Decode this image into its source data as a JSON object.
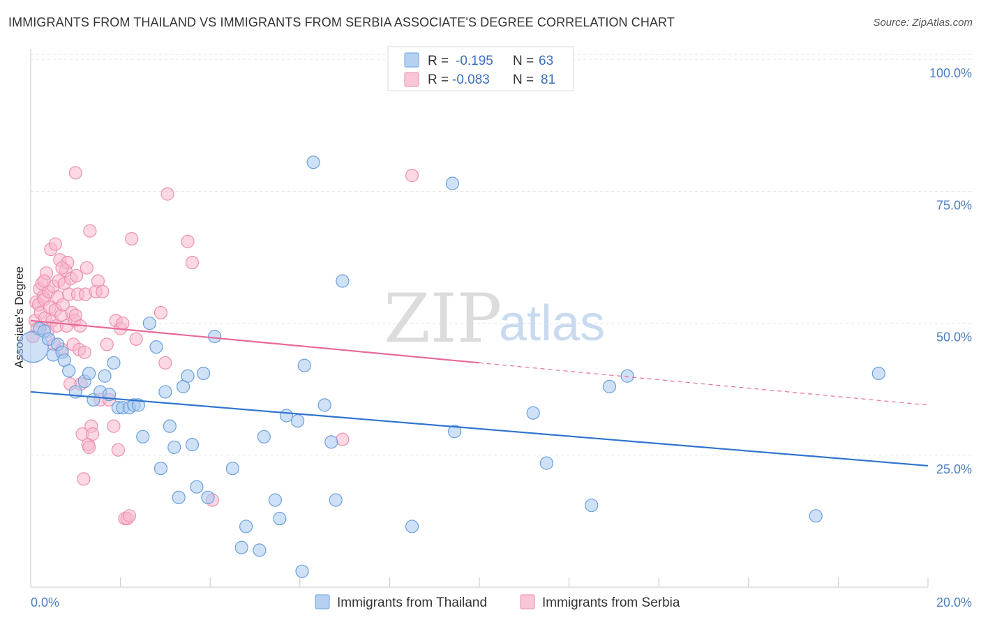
{
  "title": "IMMIGRANTS FROM THAILAND VS IMMIGRANTS FROM SERBIA ASSOCIATE'S DEGREE CORRELATION CHART",
  "source": "Source: ZipAtlas.com",
  "watermark": {
    "zip": "ZIP",
    "atlas": "atlas"
  },
  "legend": {
    "rows": [
      {
        "r_label": "R =",
        "r_value": "-0.195",
        "n_label": "N =",
        "n_value": "63",
        "color": "#7eaee8"
      },
      {
        "r_label": "R =",
        "r_value": "-0.083",
        "n_label": "N =",
        "n_value": "81",
        "color": "#f29bb8"
      }
    ]
  },
  "colors": {
    "thailand_fill": "#a8c8f0",
    "thailand_stroke": "#6a9fdc",
    "thailand_line": "#2f74cf",
    "serbia_fill": "#f7b8cc",
    "serbia_stroke": "#ee8fb0",
    "serbia_line": "#e8699a",
    "grid": "#e3e3e3",
    "tick_label": "#4a7fc1"
  },
  "chart_data": {
    "type": "scatter",
    "title": "IMMIGRANTS FROM THAILAND VS IMMIGRANTS FROM SERBIA ASSOCIATE'S DEGREE CORRELATION CHART",
    "xlabel": "",
    "ylabel": "Associate's Degree",
    "xlim": [
      0,
      20
    ],
    "ylim": [
      0,
      102
    ],
    "x_tick_labels": [
      "0.0%",
      "20.0%"
    ],
    "y_ticks": [
      25,
      50,
      75,
      100
    ],
    "y_tick_labels": [
      "25.0%",
      "50.0%",
      "75.0%",
      "100.0%"
    ],
    "grid": true,
    "legend_placement": "top-center and bottom",
    "series": [
      {
        "name": "Immigrants from Thailand",
        "color": "#7eaee8",
        "trend": {
          "x": [
            0,
            20
          ],
          "y": [
            37.0,
            23.0
          ],
          "solid_until": 20
        },
        "points": [
          [
            0.05,
            45.5
          ],
          [
            0.2,
            49.0
          ],
          [
            0.3,
            48.5
          ],
          [
            0.4,
            47.0
          ],
          [
            0.5,
            44.0
          ],
          [
            0.6,
            46.0
          ],
          [
            0.7,
            44.5
          ],
          [
            0.75,
            43.0
          ],
          [
            0.85,
            41.0
          ],
          [
            1.0,
            37.0
          ],
          [
            1.2,
            39.0
          ],
          [
            1.3,
            40.5
          ],
          [
            1.4,
            35.5
          ],
          [
            1.55,
            37.0
          ],
          [
            1.65,
            40.0
          ],
          [
            1.75,
            36.5
          ],
          [
            1.85,
            42.5
          ],
          [
            1.95,
            34.0
          ],
          [
            2.05,
            34.0
          ],
          [
            2.2,
            34.0
          ],
          [
            2.3,
            34.5
          ],
          [
            2.4,
            34.5
          ],
          [
            2.5,
            28.5
          ],
          [
            2.65,
            50.0
          ],
          [
            2.8,
            45.5
          ],
          [
            2.9,
            22.5
          ],
          [
            3.0,
            37.0
          ],
          [
            3.1,
            30.5
          ],
          [
            3.2,
            26.5
          ],
          [
            3.3,
            17.0
          ],
          [
            3.4,
            38.0
          ],
          [
            3.5,
            40.0
          ],
          [
            3.6,
            27.0
          ],
          [
            3.7,
            19.0
          ],
          [
            3.85,
            40.5
          ],
          [
            3.95,
            17.0
          ],
          [
            4.1,
            47.5
          ],
          [
            4.5,
            22.5
          ],
          [
            4.7,
            7.5
          ],
          [
            4.8,
            11.5
          ],
          [
            5.1,
            7.0
          ],
          [
            5.2,
            28.5
          ],
          [
            5.45,
            16.5
          ],
          [
            5.55,
            13.0
          ],
          [
            5.7,
            32.5
          ],
          [
            5.95,
            31.5
          ],
          [
            6.05,
            3.0
          ],
          [
            6.1,
            42.0
          ],
          [
            6.3,
            80.5
          ],
          [
            6.55,
            34.5
          ],
          [
            6.7,
            27.5
          ],
          [
            6.8,
            16.5
          ],
          [
            6.95,
            58.0
          ],
          [
            8.5,
            11.5
          ],
          [
            9.4,
            76.5
          ],
          [
            9.45,
            29.5
          ],
          [
            11.2,
            33.0
          ],
          [
            11.5,
            23.5
          ],
          [
            12.5,
            15.5
          ],
          [
            12.9,
            38.0
          ],
          [
            13.3,
            40.0
          ],
          [
            17.5,
            13.5
          ],
          [
            18.9,
            40.5
          ]
        ]
      },
      {
        "name": "Immigrants from Serbia",
        "color": "#f29bb8",
        "trend": {
          "x": [
            0,
            20
          ],
          "y": [
            50.5,
            34.5
          ],
          "solid_until": 10
        },
        "points": [
          [
            0.05,
            47.5
          ],
          [
            0.1,
            50.5
          ],
          [
            0.12,
            54.0
          ],
          [
            0.15,
            49.0
          ],
          [
            0.18,
            53.5
          ],
          [
            0.2,
            56.5
          ],
          [
            0.22,
            52.0
          ],
          [
            0.25,
            57.5
          ],
          [
            0.28,
            55.0
          ],
          [
            0.3,
            54.5
          ],
          [
            0.32,
            51.0
          ],
          [
            0.35,
            59.5
          ],
          [
            0.38,
            48.5
          ],
          [
            0.4,
            56.0
          ],
          [
            0.42,
            53.0
          ],
          [
            0.45,
            64.0
          ],
          [
            0.48,
            50.5
          ],
          [
            0.5,
            57.0
          ],
          [
            0.52,
            46.0
          ],
          [
            0.55,
            52.5
          ],
          [
            0.58,
            49.5
          ],
          [
            0.6,
            55.0
          ],
          [
            0.62,
            58.0
          ],
          [
            0.65,
            62.0
          ],
          [
            0.68,
            51.5
          ],
          [
            0.7,
            45.0
          ],
          [
            0.72,
            53.5
          ],
          [
            0.75,
            57.5
          ],
          [
            0.78,
            60.0
          ],
          [
            0.8,
            49.5
          ],
          [
            0.82,
            61.5
          ],
          [
            0.85,
            55.5
          ],
          [
            0.88,
            38.5
          ],
          [
            0.9,
            58.5
          ],
          [
            0.92,
            52.0
          ],
          [
            0.95,
            46.0
          ],
          [
            0.98,
            50.5
          ],
          [
            1.0,
            78.5
          ],
          [
            1.02,
            59.0
          ],
          [
            1.05,
            55.5
          ],
          [
            1.08,
            45.0
          ],
          [
            1.1,
            49.5
          ],
          [
            1.12,
            38.5
          ],
          [
            1.15,
            29.0
          ],
          [
            1.18,
            20.5
          ],
          [
            1.2,
            44.5
          ],
          [
            1.22,
            55.5
          ],
          [
            1.25,
            60.5
          ],
          [
            1.28,
            27.0
          ],
          [
            1.3,
            26.5
          ],
          [
            1.32,
            67.5
          ],
          [
            1.35,
            30.5
          ],
          [
            1.38,
            29.0
          ],
          [
            1.45,
            56.0
          ],
          [
            1.5,
            58.0
          ],
          [
            1.55,
            35.5
          ],
          [
            1.6,
            56.0
          ],
          [
            1.7,
            46.0
          ],
          [
            1.75,
            35.5
          ],
          [
            1.85,
            30.5
          ],
          [
            1.9,
            50.5
          ],
          [
            1.95,
            26.0
          ],
          [
            2.0,
            49.0
          ],
          [
            2.05,
            50.0
          ],
          [
            2.1,
            13.0
          ],
          [
            2.15,
            13.0
          ],
          [
            2.2,
            13.5
          ],
          [
            2.25,
            66.0
          ],
          [
            2.35,
            47.0
          ],
          [
            2.9,
            52.0
          ],
          [
            3.0,
            42.5
          ],
          [
            3.05,
            74.5
          ],
          [
            3.5,
            65.5
          ],
          [
            3.6,
            61.5
          ],
          [
            4.05,
            16.5
          ],
          [
            6.95,
            28.0
          ],
          [
            8.5,
            78.0
          ],
          [
            0.55,
            65.0
          ],
          [
            0.3,
            58.0
          ],
          [
            0.7,
            60.5
          ],
          [
            1.0,
            51.5
          ]
        ]
      }
    ]
  },
  "bottom_legend": {
    "items": [
      {
        "label": "Immigrants from Thailand",
        "color": "#7eaee8"
      },
      {
        "label": "Immigrants from Serbia",
        "color": "#f29bb8"
      }
    ]
  }
}
